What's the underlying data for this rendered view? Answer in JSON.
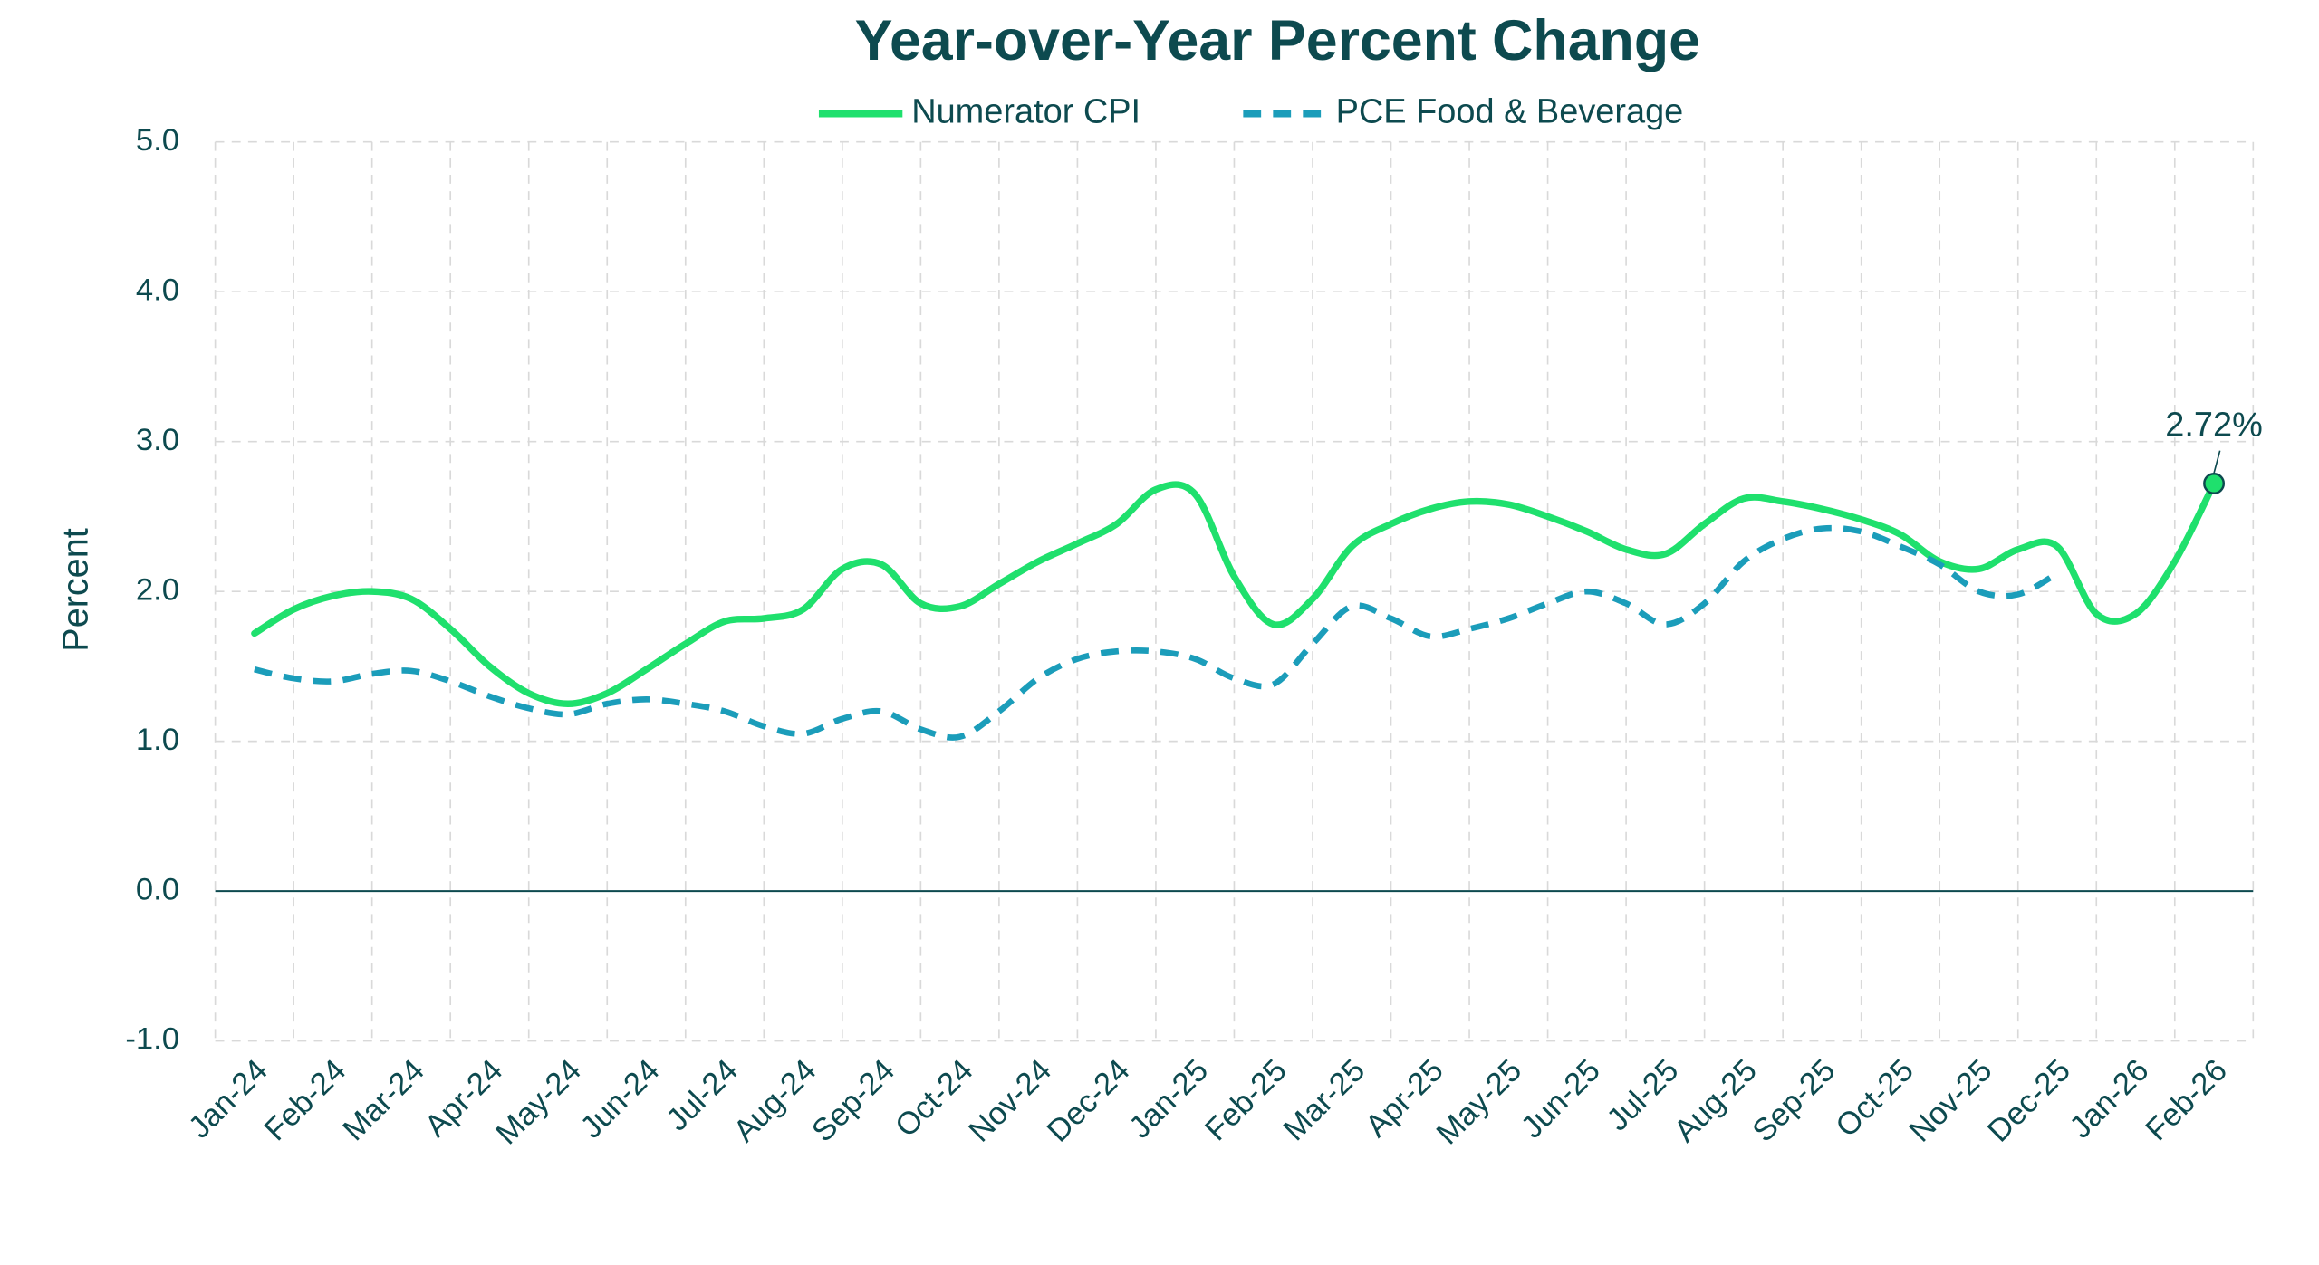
{
  "chart_data": {
    "type": "line",
    "title": "Year-over-Year Percent Change",
    "ylabel": "Percent",
    "categories": [
      "Jan-24",
      null,
      "Feb-24",
      null,
      "Mar-24",
      null,
      "Apr-24",
      null,
      "May-24",
      null,
      "Jun-24",
      null,
      "Jul-24",
      null,
      "Aug-24",
      null,
      "Sep-24",
      null,
      "Oct-24",
      null,
      "Nov-24",
      null,
      "Dec-24",
      null,
      "Jan-25",
      null,
      "Feb-25",
      null,
      "Mar-25",
      null,
      "Apr-25",
      null,
      "May-25",
      null,
      "Jun-25",
      null,
      "Jul-25",
      null,
      "Aug-25",
      null,
      "Sep-25",
      null,
      "Oct-25",
      null,
      "Nov-25",
      null,
      "Dec-25",
      null,
      "Jan-26",
      null,
      "Feb-26"
    ],
    "series": [
      {
        "name": "Numerator CPI",
        "color": "#1fe06d",
        "dash": false,
        "values": [
          1.72,
          1.88,
          1.97,
          2.0,
          1.95,
          1.75,
          1.5,
          1.32,
          1.25,
          1.32,
          1.48,
          1.65,
          1.8,
          1.82,
          1.88,
          2.15,
          2.18,
          1.92,
          1.9,
          2.05,
          2.2,
          2.32,
          2.45,
          2.68,
          2.65,
          2.1,
          1.78,
          1.95,
          2.3,
          2.45,
          2.55,
          2.6,
          2.58,
          2.5,
          2.4,
          2.28,
          2.25,
          2.45,
          2.62,
          2.6,
          2.55,
          2.48,
          2.38,
          2.2,
          2.15,
          2.28,
          2.3,
          1.85,
          1.85,
          2.2,
          2.72
        ],
        "value_labels": [
          null,
          null,
          null,
          null,
          null,
          null,
          null,
          null,
          null,
          null,
          null,
          null,
          null,
          null,
          null,
          null,
          null,
          null,
          null,
          null,
          null,
          null,
          null,
          null,
          null,
          null,
          null,
          null,
          null,
          null,
          null,
          null,
          null,
          null,
          null,
          null,
          null,
          null,
          null,
          null,
          null,
          null,
          null,
          null,
          null,
          null,
          null,
          null,
          null,
          null,
          "2.72%"
        ]
      },
      {
        "name": "PCE Food & Beverage",
        "color": "#1b9dba",
        "dash": true,
        "values": [
          1.48,
          1.42,
          1.4,
          1.45,
          1.47,
          1.4,
          1.3,
          1.22,
          1.18,
          1.25,
          1.28,
          1.25,
          1.2,
          1.1,
          1.05,
          1.15,
          1.2,
          1.08,
          1.03,
          1.2,
          1.42,
          1.55,
          1.6,
          1.6,
          1.55,
          1.42,
          1.38,
          1.65,
          1.9,
          1.82,
          1.7,
          1.75,
          1.82,
          1.92,
          2.0,
          1.92,
          1.78,
          1.92,
          2.2,
          2.35,
          2.42,
          2.4,
          2.3,
          2.18,
          2.0,
          1.98,
          2.12,
          null,
          null,
          null,
          null
        ]
      }
    ],
    "ylim": [
      -1,
      5
    ],
    "yticks": [
      {
        "value": -1,
        "label": "-1.0"
      },
      {
        "value": 0,
        "label": "0.0"
      },
      {
        "value": 1,
        "label": "1.0"
      },
      {
        "value": 2,
        "label": "2.0"
      },
      {
        "value": 3,
        "label": "3.0"
      },
      {
        "value": 4,
        "label": "4.0"
      },
      {
        "value": 5,
        "label": "5.0"
      }
    ],
    "grid": true,
    "legend": "top"
  }
}
